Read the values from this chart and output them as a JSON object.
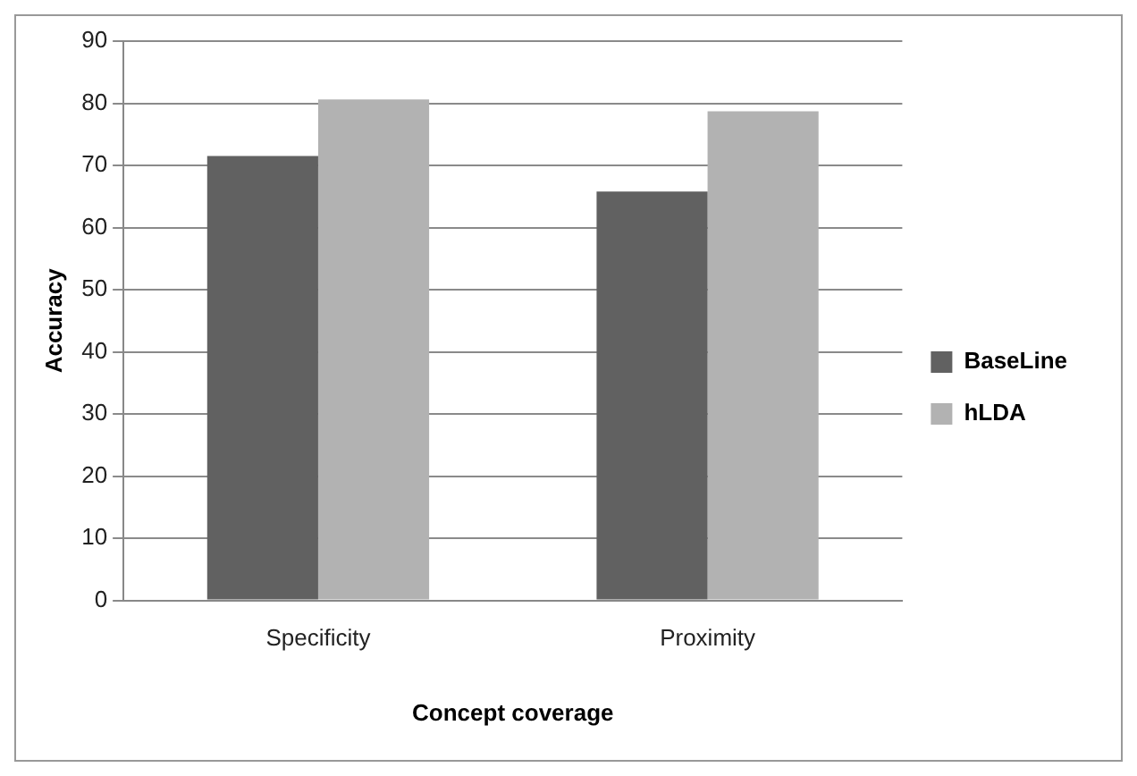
{
  "chart_data": {
    "type": "bar",
    "xlabel": "Concept coverage",
    "ylabel": "Accuracy",
    "categories": [
      "Specificity",
      "Proximity"
    ],
    "series": [
      {
        "name": "BaseLine",
        "color": "#616161",
        "values": [
          71.5,
          65.8
        ]
      },
      {
        "name": "hLDA",
        "color": "#b2b2b2",
        "values": [
          80.6,
          78.7
        ]
      }
    ],
    "ylim": [
      0,
      90
    ],
    "yticks": [
      0,
      10,
      20,
      30,
      40,
      50,
      60,
      70,
      80,
      90
    ],
    "grid": "y",
    "legend": "right"
  }
}
